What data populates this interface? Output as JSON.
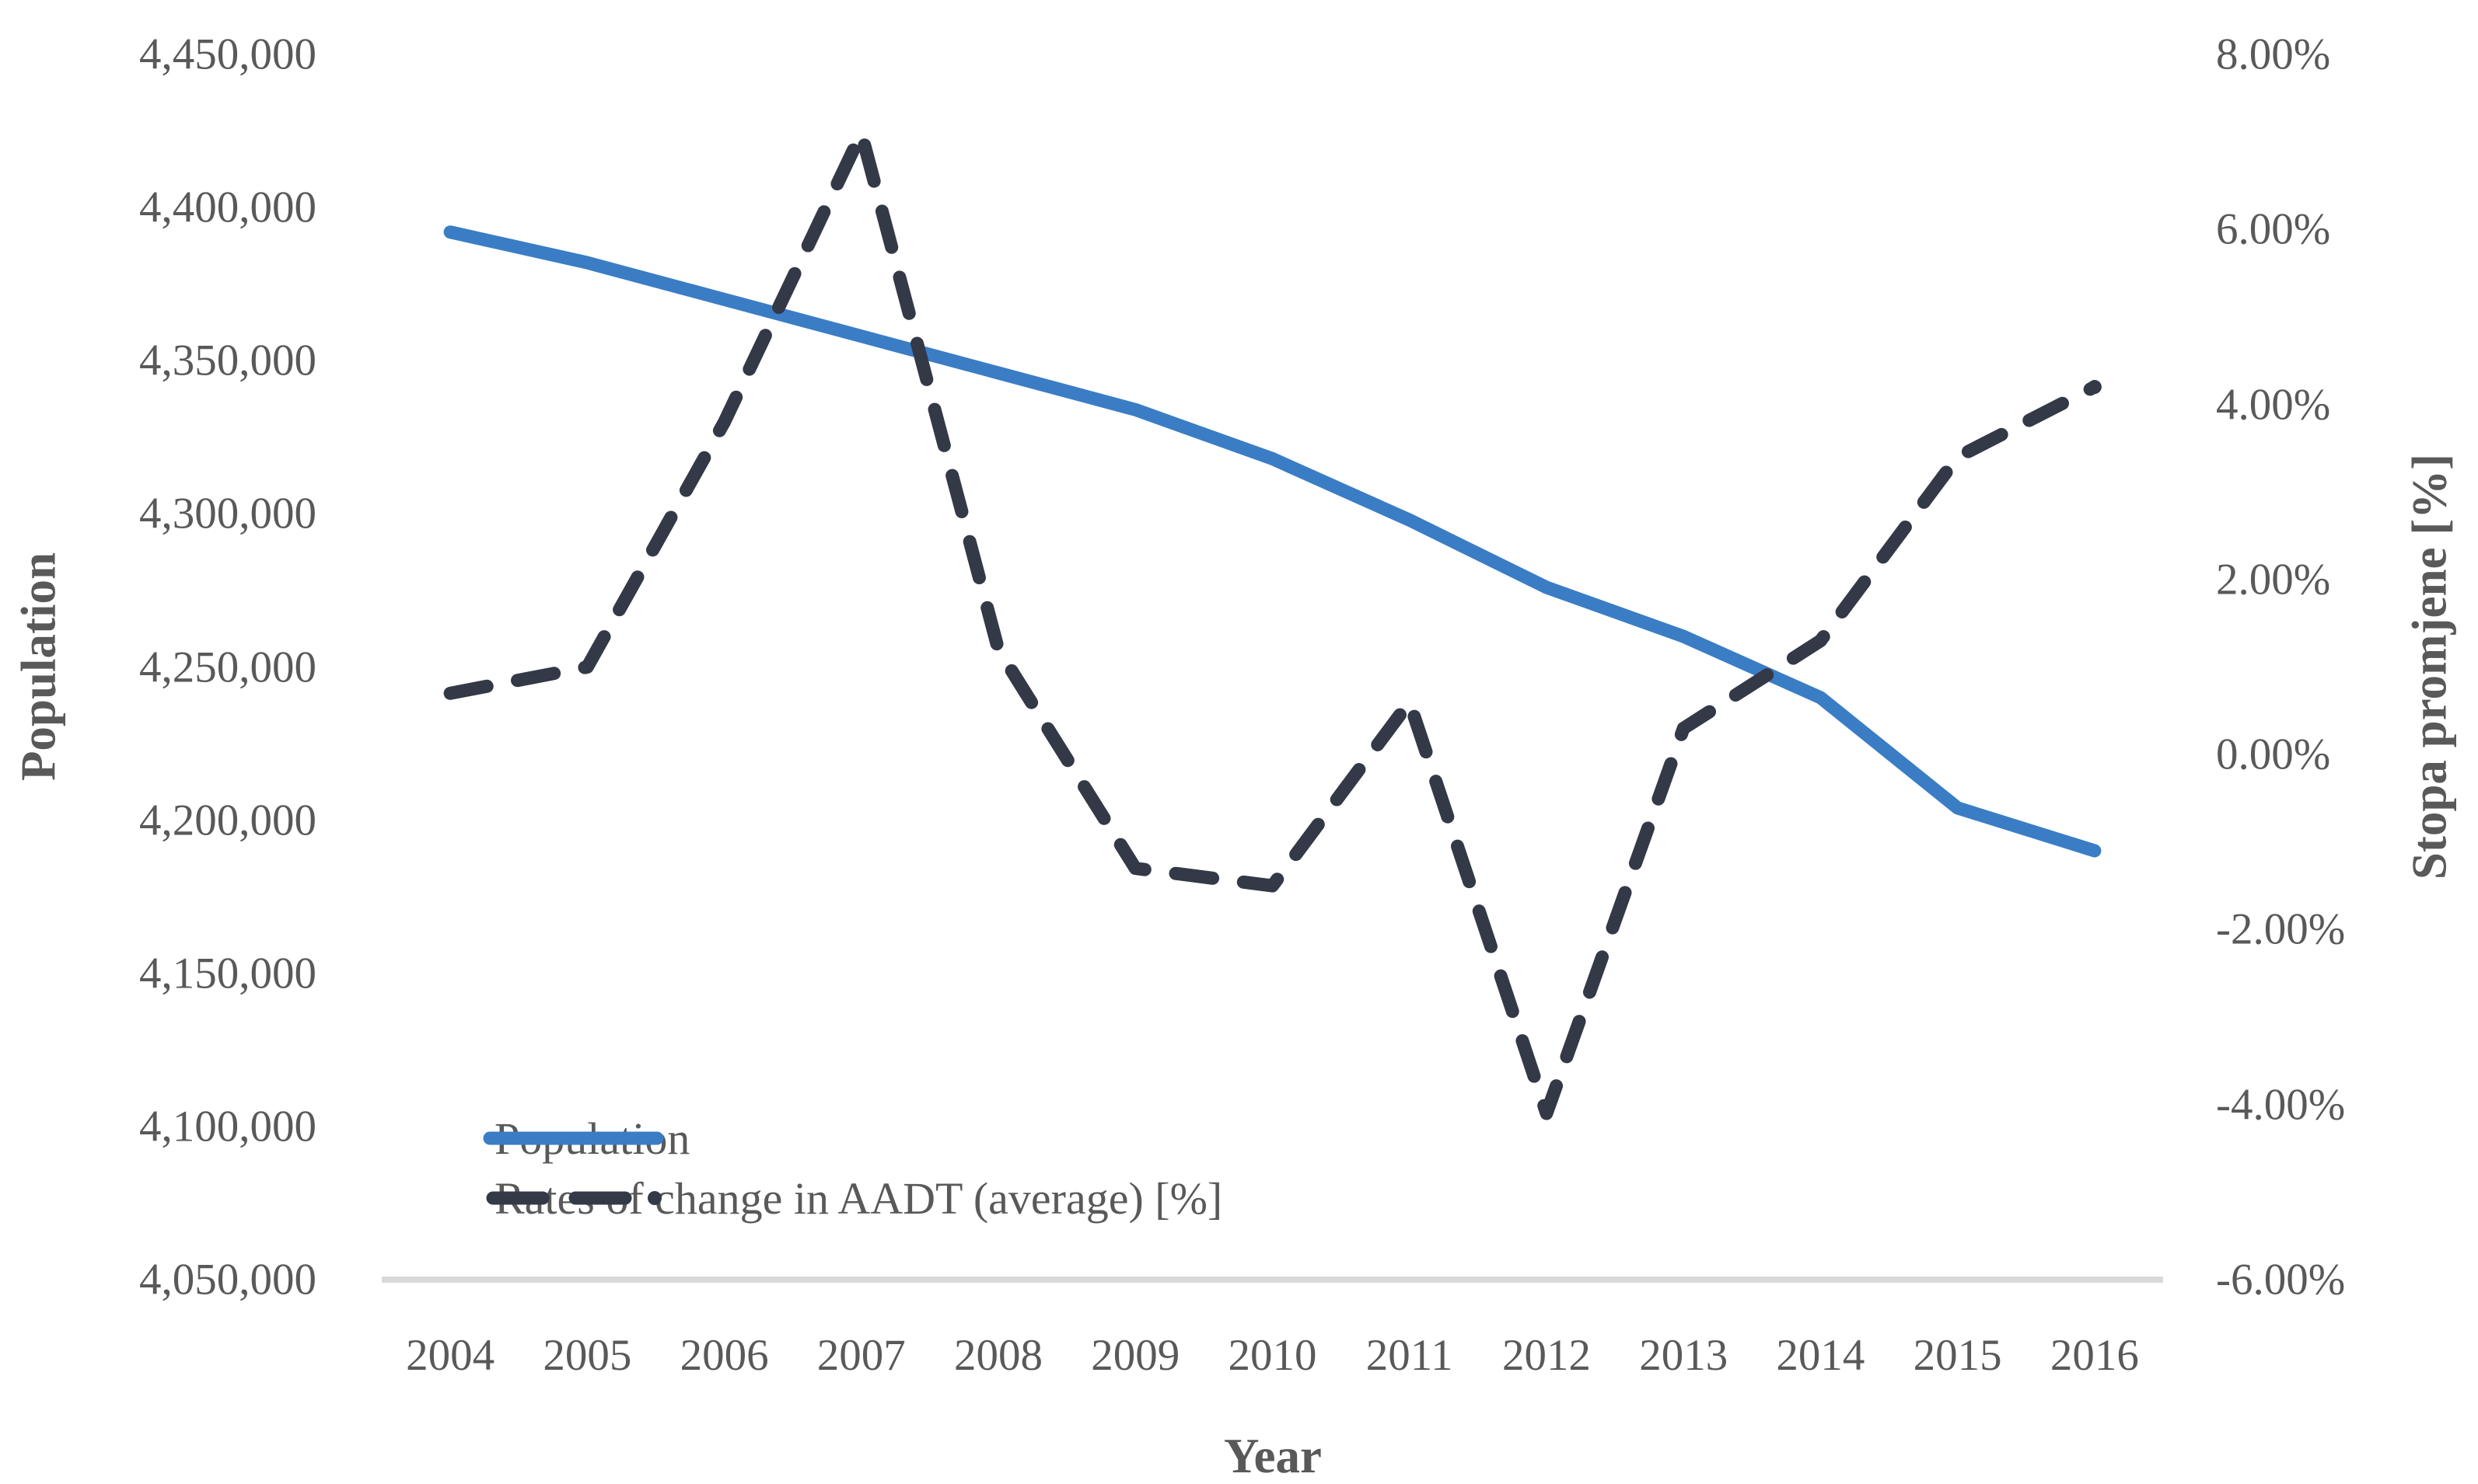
{
  "chart_data": {
    "type": "line",
    "title": "",
    "x": [
      2004,
      2005,
      2006,
      2007,
      2008,
      2009,
      2010,
      2011,
      2012,
      2013,
      2014,
      2015,
      2016
    ],
    "series": [
      {
        "name": "Population",
        "axis": "left",
        "style": "solid",
        "color": "#3A7DC5",
        "values": [
          4392000,
          4382000,
          4370000,
          4358000,
          4346000,
          4334000,
          4318000,
          4298000,
          4276000,
          4260000,
          4240000,
          4204000,
          4190000
        ]
      },
      {
        "name": "Rates of change in AADT (average) [%]",
        "axis": "right",
        "style": "dashed",
        "color": "#343947",
        "values": [
          0.7,
          1.0,
          3.8,
          7.1,
          1.2,
          -1.3,
          -1.5,
          0.6,
          -4.1,
          0.3,
          1.3,
          3.4,
          4.2
        ]
      }
    ],
    "left_axis": {
      "label": "Population",
      "min": 4050000,
      "max": 4450000,
      "step": 50000,
      "tick_labels": [
        "4,450,000",
        "4,400,000",
        "4,350,000",
        "4,300,000",
        "4,250,000",
        "4,200,000",
        "4,150,000",
        "4,100,000",
        "4,050,000"
      ]
    },
    "right_axis": {
      "label": "Stopa promjene [%]",
      "min": -6,
      "max": 8,
      "step": 2,
      "tick_labels": [
        "8.00%",
        "6.00%",
        "4.00%",
        "2.00%",
        "0.00%",
        "-2.00%",
        "-4.00%",
        "-6.00%"
      ]
    },
    "x_axis": {
      "label": "Year",
      "tick_labels": [
        "2004",
        "2005",
        "2006",
        "2007",
        "2008",
        "2009",
        "2010",
        "2011",
        "2012",
        "2013",
        "2014",
        "2015",
        "2016"
      ]
    },
    "legend": {
      "position": "bottom-left-inside",
      "entries": [
        {
          "label": "Population"
        },
        {
          "label": "Rates of change in AADT (average) [%]"
        }
      ]
    },
    "grid": "off",
    "axis_line_color": "#D9D9D9",
    "text_color": "#595959",
    "background": "#FFFFFF"
  }
}
